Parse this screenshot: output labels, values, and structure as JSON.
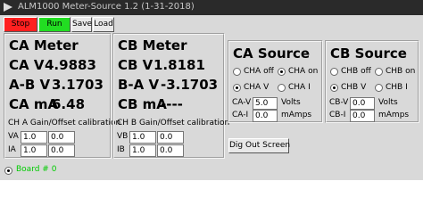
{
  "window": {
    "title": "ALM1000 Meter-Source 1.2 (1-31-2018)"
  },
  "toolbar": {
    "buttons": [
      "Stop",
      "Run",
      "Save",
      "Load"
    ]
  },
  "ca_meter": {
    "title": "CA Meter",
    "readings": [
      {
        "label": "CA V",
        "value": "4.9883"
      },
      {
        "label": "A-B V",
        "value": "3.1703"
      },
      {
        "label": "CA mA",
        "value": "6.48"
      }
    ],
    "calibration_title": "CH A Gain/Offset calibration",
    "calibration": [
      {
        "label": "VA",
        "gain": "1.0",
        "offset": "0.0"
      },
      {
        "label": "IA",
        "gain": "1.0",
        "offset": "0.0"
      }
    ]
  },
  "cb_meter": {
    "title": "CB Meter",
    "readings": [
      {
        "label": "CB V",
        "value": "1.8181"
      },
      {
        "label": "B-A V",
        "value": "-3.1703"
      },
      {
        "label": "CB mA",
        "value": "----"
      }
    ],
    "calibration_title": "CH B Gain/Offset calibration",
    "calibration": [
      {
        "label": "VB",
        "gain": "1.0",
        "offset": "0.0"
      },
      {
        "label": "IB",
        "gain": "1.0",
        "offset": "0.0"
      }
    ]
  },
  "ca_source": {
    "title": "CA Source",
    "radios": [
      [
        {
          "label": "CHA off",
          "selected": false
        },
        {
          "label": "CHA on",
          "selected": true
        }
      ],
      [
        {
          "label": "CHA V",
          "selected": true
        },
        {
          "label": "CHA I",
          "selected": false
        }
      ]
    ],
    "fields": [
      {
        "label": "CA-V",
        "value": "5.0",
        "unit": "Volts"
      },
      {
        "label": "CA-I",
        "value": "0.0",
        "unit": "mAmps"
      }
    ]
  },
  "cb_source": {
    "title": "CB Source",
    "radios": [
      [
        {
          "label": "CHB off",
          "selected": false
        },
        {
          "label": "CHB on",
          "selected": false
        }
      ],
      [
        {
          "label": "CHB V",
          "selected": true
        },
        {
          "label": "CHB I",
          "selected": false
        }
      ]
    ],
    "fields": [
      {
        "label": "CB-V",
        "value": "0.0",
        "unit": "Volts"
      },
      {
        "label": "CB-I",
        "value": "0.0",
        "unit": "mAmps"
      }
    ]
  },
  "dig_out_button": "Dig Out Screen",
  "board": {
    "label": "Board # 0",
    "selected": true
  }
}
